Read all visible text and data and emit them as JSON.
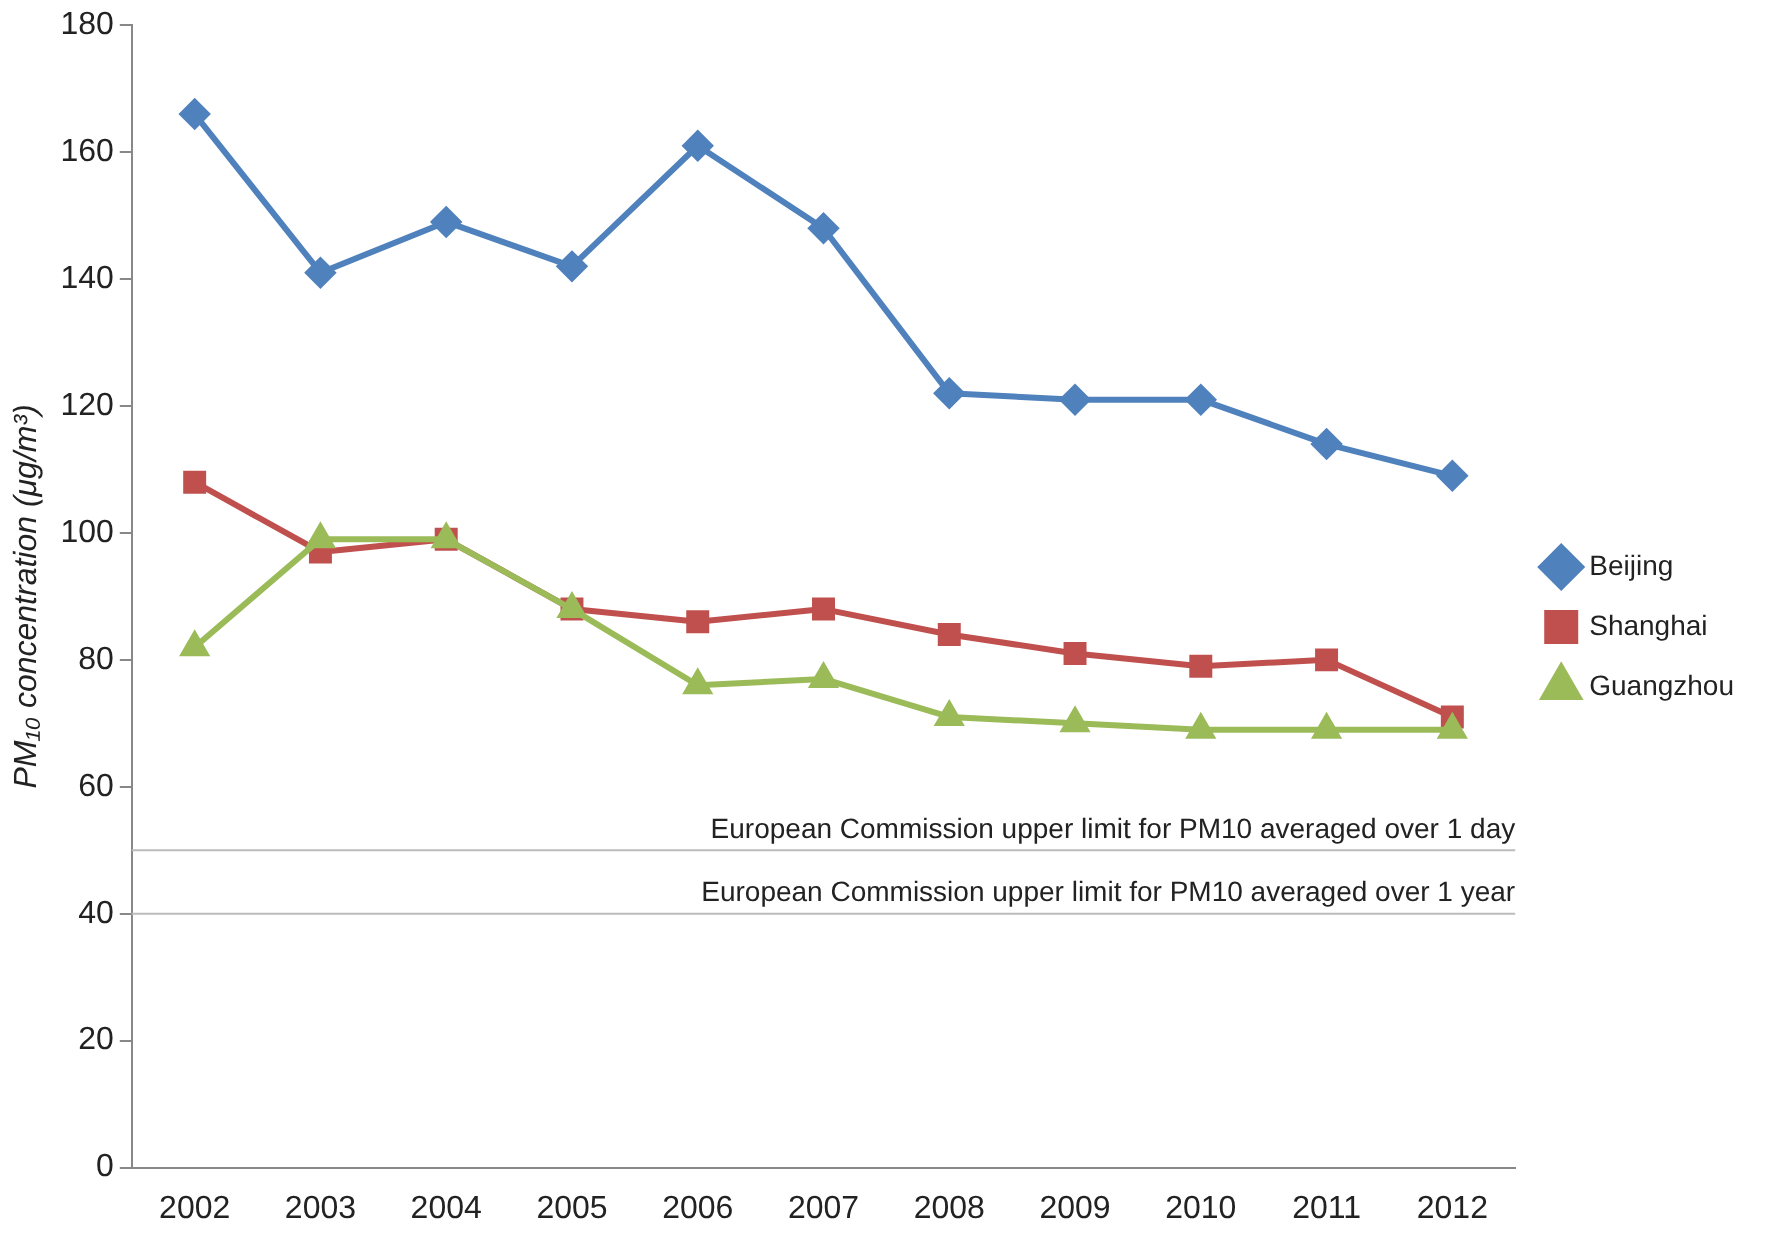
{
  "chart_data": {
    "type": "line",
    "ylabel": "PM₁₀ concentration (μg/m³)",
    "categories": [
      "2002",
      "2003",
      "2004",
      "2005",
      "2006",
      "2007",
      "2008",
      "2009",
      "2010",
      "2011",
      "2012"
    ],
    "series": [
      {
        "name": "Beijing",
        "color": "#4f81bd",
        "marker": "diamond",
        "values": [
          166,
          141,
          149,
          142,
          161,
          148,
          122,
          121,
          121,
          114,
          109
        ]
      },
      {
        "name": "Shanghai",
        "color": "#c0504d",
        "marker": "square",
        "values": [
          108,
          97,
          99,
          88,
          86,
          88,
          84,
          81,
          79,
          80,
          71
        ]
      },
      {
        "name": "Guangzhou",
        "color": "#9bbb59",
        "marker": "triangle",
        "values": [
          82,
          99,
          99,
          88,
          76,
          77,
          71,
          70,
          69,
          69,
          69
        ]
      }
    ],
    "ylim": [
      0,
      180
    ],
    "yticks": [
      0,
      20,
      40,
      60,
      80,
      100,
      120,
      140,
      160,
      180
    ],
    "grid": false,
    "legend": "right",
    "ref_lines": [
      {
        "axis": "y",
        "value": 50,
        "label": "European Commission upper limit for PM10 averaged over 1 day",
        "color": "#bbbbbb"
      },
      {
        "axis": "y",
        "value": 40,
        "label": "European Commission upper limit for PM10 averaged over 1 year",
        "color": "#bbbbbb"
      }
    ]
  }
}
